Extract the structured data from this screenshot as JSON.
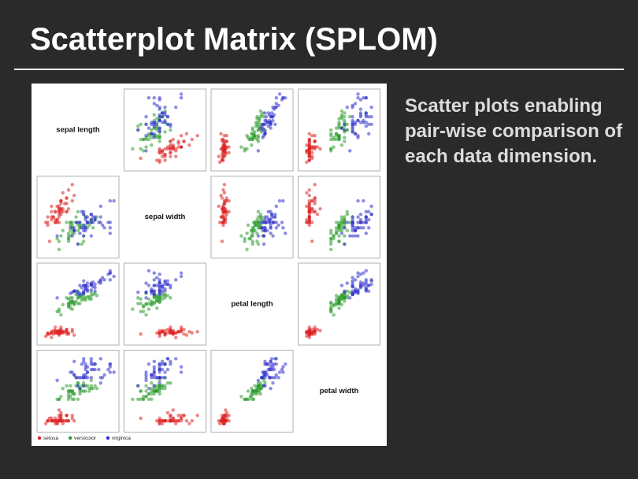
{
  "title": "Scatterplot Matrix (SPLOM)",
  "text": "Scatter plots enabling pair-wise comparison of each data dimension.",
  "chart_data": {
    "type": "scatter_matrix",
    "dimensions": [
      {
        "name": "sepal length",
        "lim": [
          4,
          8
        ]
      },
      {
        "name": "sepal width",
        "lim": [
          1.8,
          4.6
        ]
      },
      {
        "name": "petal length",
        "lim": [
          0.6,
          7.3
        ]
      },
      {
        "name": "petal width",
        "lim": [
          -0.1,
          2.7
        ]
      }
    ],
    "series": [
      {
        "name": "setosa",
        "color": "#dd2222",
        "values": [
          [
            5.1,
            3.5,
            1.4,
            0.2
          ],
          [
            4.9,
            3.0,
            1.4,
            0.2
          ],
          [
            4.7,
            3.2,
            1.3,
            0.2
          ],
          [
            4.6,
            3.1,
            1.5,
            0.2
          ],
          [
            5.0,
            3.6,
            1.4,
            0.2
          ],
          [
            5.4,
            3.9,
            1.7,
            0.4
          ],
          [
            4.6,
            3.4,
            1.4,
            0.3
          ],
          [
            5.0,
            3.4,
            1.5,
            0.2
          ],
          [
            4.4,
            2.9,
            1.4,
            0.2
          ],
          [
            4.9,
            3.1,
            1.5,
            0.1
          ],
          [
            5.4,
            3.7,
            1.5,
            0.2
          ],
          [
            4.8,
            3.4,
            1.6,
            0.2
          ],
          [
            4.8,
            3.0,
            1.4,
            0.1
          ],
          [
            4.3,
            3.0,
            1.1,
            0.1
          ],
          [
            5.8,
            4.0,
            1.2,
            0.2
          ],
          [
            5.7,
            4.4,
            1.5,
            0.4
          ],
          [
            5.4,
            3.9,
            1.3,
            0.4
          ],
          [
            5.1,
            3.5,
            1.4,
            0.3
          ],
          [
            5.7,
            3.8,
            1.7,
            0.3
          ],
          [
            5.1,
            3.8,
            1.5,
            0.3
          ],
          [
            5.4,
            3.4,
            1.7,
            0.2
          ],
          [
            5.1,
            3.7,
            1.5,
            0.4
          ],
          [
            4.6,
            3.6,
            1.0,
            0.2
          ],
          [
            5.1,
            3.3,
            1.7,
            0.5
          ],
          [
            4.8,
            3.4,
            1.9,
            0.2
          ],
          [
            5.0,
            3.0,
            1.6,
            0.2
          ],
          [
            5.0,
            3.4,
            1.6,
            0.4
          ],
          [
            5.2,
            3.5,
            1.5,
            0.2
          ],
          [
            5.2,
            3.4,
            1.4,
            0.2
          ],
          [
            4.7,
            3.2,
            1.6,
            0.2
          ],
          [
            4.8,
            3.1,
            1.6,
            0.2
          ],
          [
            5.4,
            3.4,
            1.5,
            0.4
          ],
          [
            5.2,
            4.1,
            1.5,
            0.1
          ],
          [
            5.5,
            4.2,
            1.4,
            0.2
          ],
          [
            4.9,
            3.1,
            1.5,
            0.2
          ],
          [
            5.0,
            3.2,
            1.2,
            0.2
          ],
          [
            5.5,
            3.5,
            1.3,
            0.2
          ],
          [
            4.9,
            3.6,
            1.4,
            0.1
          ],
          [
            4.4,
            3.0,
            1.3,
            0.2
          ],
          [
            5.1,
            3.4,
            1.5,
            0.2
          ],
          [
            5.0,
            3.5,
            1.3,
            0.3
          ],
          [
            4.5,
            2.3,
            1.3,
            0.3
          ],
          [
            4.4,
            3.2,
            1.3,
            0.2
          ],
          [
            5.0,
            3.5,
            1.6,
            0.6
          ],
          [
            5.1,
            3.8,
            1.9,
            0.4
          ],
          [
            4.8,
            3.0,
            1.4,
            0.3
          ],
          [
            5.1,
            3.8,
            1.6,
            0.2
          ],
          [
            4.6,
            3.2,
            1.4,
            0.2
          ],
          [
            5.3,
            3.7,
            1.5,
            0.2
          ],
          [
            5.0,
            3.3,
            1.4,
            0.2
          ]
        ]
      },
      {
        "name": "versicolor",
        "color": "#2a9a2a",
        "values": [
          [
            7.0,
            3.2,
            4.7,
            1.4
          ],
          [
            6.4,
            3.2,
            4.5,
            1.5
          ],
          [
            6.9,
            3.1,
            4.9,
            1.5
          ],
          [
            5.5,
            2.3,
            4.0,
            1.3
          ],
          [
            6.5,
            2.8,
            4.6,
            1.5
          ],
          [
            5.7,
            2.8,
            4.5,
            1.3
          ],
          [
            6.3,
            3.3,
            4.7,
            1.6
          ],
          [
            4.9,
            2.4,
            3.3,
            1.0
          ],
          [
            6.6,
            2.9,
            4.6,
            1.3
          ],
          [
            5.2,
            2.7,
            3.9,
            1.4
          ],
          [
            5.0,
            2.0,
            3.5,
            1.0
          ],
          [
            5.9,
            3.0,
            4.2,
            1.5
          ],
          [
            6.0,
            2.2,
            4.0,
            1.0
          ],
          [
            6.1,
            2.9,
            4.7,
            1.4
          ],
          [
            5.6,
            2.9,
            3.6,
            1.3
          ],
          [
            6.7,
            3.1,
            4.4,
            1.4
          ],
          [
            5.6,
            3.0,
            4.5,
            1.5
          ],
          [
            5.8,
            2.7,
            4.1,
            1.0
          ],
          [
            6.2,
            2.2,
            4.5,
            1.5
          ],
          [
            5.6,
            2.5,
            3.9,
            1.1
          ],
          [
            5.9,
            3.2,
            4.8,
            1.8
          ],
          [
            6.1,
            2.8,
            4.0,
            1.3
          ],
          [
            6.3,
            2.5,
            4.9,
            1.5
          ],
          [
            6.1,
            2.8,
            4.7,
            1.2
          ],
          [
            6.4,
            2.9,
            4.3,
            1.3
          ],
          [
            6.6,
            3.0,
            4.4,
            1.4
          ],
          [
            6.8,
            2.8,
            4.8,
            1.4
          ],
          [
            6.7,
            3.0,
            5.0,
            1.7
          ],
          [
            6.0,
            2.9,
            4.5,
            1.5
          ],
          [
            5.7,
            2.6,
            3.5,
            1.0
          ],
          [
            5.5,
            2.4,
            3.8,
            1.1
          ],
          [
            5.5,
            2.4,
            3.7,
            1.0
          ],
          [
            5.8,
            2.7,
            3.9,
            1.2
          ],
          [
            6.0,
            2.7,
            5.1,
            1.6
          ],
          [
            5.4,
            3.0,
            4.5,
            1.5
          ],
          [
            6.0,
            3.4,
            4.5,
            1.6
          ],
          [
            6.7,
            3.1,
            4.7,
            1.5
          ],
          [
            6.3,
            2.3,
            4.4,
            1.3
          ],
          [
            5.6,
            3.0,
            4.1,
            1.3
          ],
          [
            5.5,
            2.5,
            4.0,
            1.3
          ],
          [
            5.5,
            2.6,
            4.4,
            1.2
          ],
          [
            6.1,
            3.0,
            4.6,
            1.4
          ],
          [
            5.8,
            2.6,
            4.0,
            1.2
          ],
          [
            5.0,
            2.3,
            3.3,
            1.0
          ],
          [
            5.6,
            2.7,
            4.2,
            1.3
          ],
          [
            5.7,
            3.0,
            4.2,
            1.2
          ],
          [
            5.7,
            2.9,
            4.2,
            1.3
          ],
          [
            6.2,
            2.9,
            4.3,
            1.3
          ],
          [
            5.1,
            2.5,
            3.0,
            1.1
          ],
          [
            5.7,
            2.8,
            4.1,
            1.3
          ]
        ]
      },
      {
        "name": "virginica",
        "color": "#2f2fcc",
        "values": [
          [
            6.3,
            3.3,
            6.0,
            2.5
          ],
          [
            5.8,
            2.7,
            5.1,
            1.9
          ],
          [
            7.1,
            3.0,
            5.9,
            2.1
          ],
          [
            6.3,
            2.9,
            5.6,
            1.8
          ],
          [
            6.5,
            3.0,
            5.8,
            2.2
          ],
          [
            7.6,
            3.0,
            6.6,
            2.1
          ],
          [
            4.9,
            2.5,
            4.5,
            1.7
          ],
          [
            7.3,
            2.9,
            6.3,
            1.8
          ],
          [
            6.7,
            2.5,
            5.8,
            1.8
          ],
          [
            7.2,
            3.6,
            6.1,
            2.5
          ],
          [
            6.5,
            3.2,
            5.1,
            2.0
          ],
          [
            6.4,
            2.7,
            5.3,
            1.9
          ],
          [
            6.8,
            3.0,
            5.5,
            2.1
          ],
          [
            5.7,
            2.5,
            5.0,
            2.0
          ],
          [
            5.8,
            2.8,
            5.1,
            2.4
          ],
          [
            6.4,
            3.2,
            5.3,
            2.3
          ],
          [
            6.5,
            3.0,
            5.5,
            1.8
          ],
          [
            7.7,
            3.8,
            6.7,
            2.2
          ],
          [
            7.7,
            2.6,
            6.9,
            2.3
          ],
          [
            6.0,
            2.2,
            5.0,
            1.5
          ],
          [
            6.9,
            3.2,
            5.7,
            2.3
          ],
          [
            5.6,
            2.8,
            4.9,
            2.0
          ],
          [
            7.7,
            2.8,
            6.7,
            2.0
          ],
          [
            6.3,
            2.7,
            4.9,
            1.8
          ],
          [
            6.7,
            3.3,
            5.7,
            2.1
          ],
          [
            7.2,
            3.2,
            6.0,
            1.8
          ],
          [
            6.2,
            2.8,
            4.8,
            1.8
          ],
          [
            6.1,
            3.0,
            4.9,
            1.8
          ],
          [
            6.4,
            2.8,
            5.6,
            2.1
          ],
          [
            7.2,
            3.0,
            5.8,
            1.6
          ],
          [
            7.4,
            2.8,
            6.1,
            1.9
          ],
          [
            7.9,
            3.8,
            6.4,
            2.0
          ],
          [
            6.4,
            2.8,
            5.6,
            2.2
          ],
          [
            6.3,
            2.8,
            5.1,
            1.5
          ],
          [
            6.1,
            2.6,
            5.6,
            1.4
          ],
          [
            7.7,
            3.0,
            6.1,
            2.3
          ],
          [
            6.3,
            3.4,
            5.6,
            2.4
          ],
          [
            6.4,
            3.1,
            5.5,
            1.8
          ],
          [
            6.0,
            3.0,
            4.8,
            1.8
          ],
          [
            6.9,
            3.1,
            5.4,
            2.1
          ],
          [
            6.7,
            3.1,
            5.6,
            2.4
          ],
          [
            6.9,
            3.1,
            5.1,
            2.3
          ],
          [
            5.8,
            2.7,
            5.1,
            1.9
          ],
          [
            6.8,
            3.2,
            5.9,
            2.3
          ],
          [
            6.7,
            3.3,
            5.7,
            2.5
          ],
          [
            6.7,
            3.0,
            5.2,
            2.3
          ],
          [
            6.3,
            2.5,
            5.0,
            1.9
          ],
          [
            6.5,
            3.0,
            5.2,
            2.0
          ],
          [
            6.2,
            3.4,
            5.4,
            2.3
          ],
          [
            5.9,
            3.0,
            5.1,
            1.8
          ]
        ]
      }
    ]
  }
}
